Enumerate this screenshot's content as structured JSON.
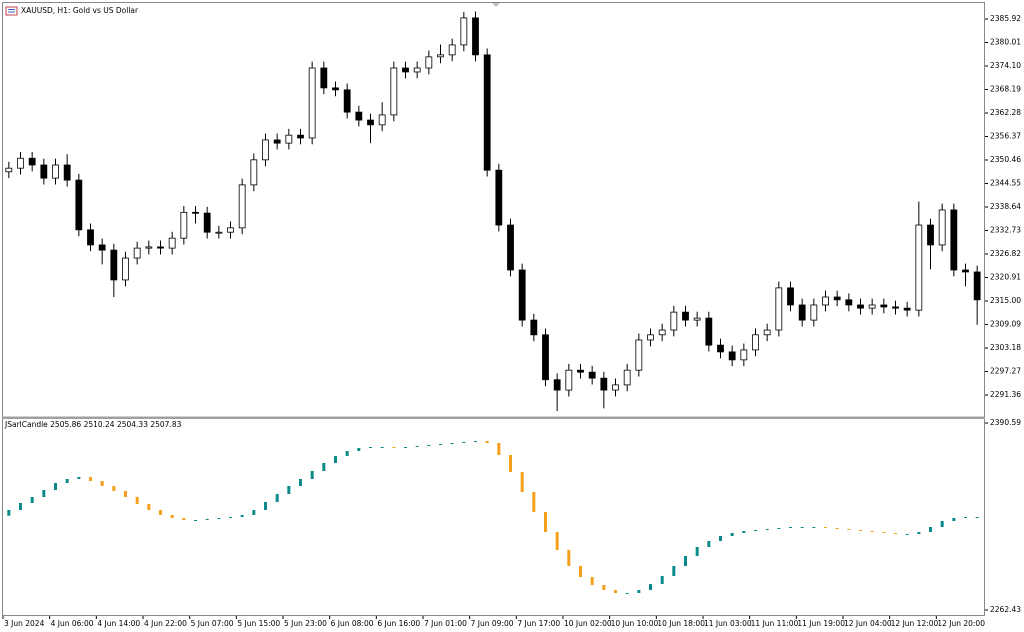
{
  "chart_data": [
    {
      "type": "candlestick",
      "title": "XAUUSD, H1: Gold vs US Dollar",
      "categories": [
        "3 Jun 2024",
        null,
        null,
        null,
        "4 Jun 06:00",
        null,
        null,
        null,
        "4 Jun 14:00",
        null,
        null,
        null,
        "4 Jun 22:00",
        null,
        null,
        null,
        "5 Jun 07:00",
        null,
        null,
        null,
        "5 Jun 15:00",
        null,
        null,
        null,
        "5 Jun 23:00",
        null,
        null,
        null,
        "6 Jun 08:00",
        null,
        null,
        null,
        "6 Jun 16:00",
        null,
        null,
        null,
        "7 Jun 01:00",
        null,
        null,
        null,
        "7 Jun 09:00",
        null,
        null,
        null,
        "7 Jun 17:00",
        null,
        null,
        null,
        "10 Jun 02:00",
        null,
        null,
        null,
        "10 Jun 10:00",
        null,
        null,
        null,
        "10 Jun 18:00",
        null,
        null,
        null,
        "11 Jun 03:00",
        null,
        null,
        null,
        "11 Jun 11:00",
        null,
        null,
        null,
        "11 Jun 19:00",
        null,
        null,
        null,
        "12 Jun 04:00",
        null,
        null,
        null,
        "12 Jun 12:00",
        null,
        null,
        null,
        "12 Jun 20:00",
        null,
        null,
        null
      ],
      "open": [
        2347.5,
        2348.4,
        2350.9,
        2349.2,
        2345.9,
        2349.2,
        2345.4,
        2332.9,
        2329.1,
        2327.8,
        2320.3,
        2325.8,
        2328.3,
        2328.6,
        2328.3,
        2330.8,
        2337.3,
        2337.1,
        2332.3,
        2332.3,
        2333.4,
        2344.2,
        2350.5,
        2355.5,
        2354.7,
        2356.7,
        2356.0,
        2373.6,
        2368.6,
        2368.1,
        2362.5,
        2360.5,
        2359.3,
        2361.8,
        2373.6,
        2372.6,
        2373.6,
        2376.4,
        2376.9,
        2379.4,
        2386.2,
        2376.9,
        2347.9,
        2334.1,
        2322.8,
        2310.2,
        2306.5,
        2295.2,
        2292.6,
        2297.6,
        2297.1,
        2295.6,
        2292.6,
        2293.9,
        2297.6,
        2305.2,
        2306.5,
        2307.7,
        2312.2,
        2310.2,
        2310.7,
        2303.9,
        2302.2,
        2300.2,
        2302.7,
        2306.5,
        2307.7,
        2318.3,
        2314.0,
        2310.2,
        2314.0,
        2316.0,
        2315.3,
        2314.0,
        2313.2,
        2314.0,
        2313.5,
        2313.2,
        2312.7,
        2334.1,
        2329.1,
        2337.9,
        2322.8,
        2322.3
      ],
      "high": [
        2350.0,
        2352.5,
        2352.5,
        2350.8,
        2350.8,
        2351.9,
        2347.0,
        2334.5,
        2330.7,
        2329.4,
        2327.4,
        2329.9,
        2330.2,
        2330.2,
        2332.4,
        2338.9,
        2338.9,
        2338.7,
        2333.9,
        2335.0,
        2345.8,
        2352.1,
        2357.1,
        2357.1,
        2358.3,
        2358.3,
        2375.2,
        2375.2,
        2370.2,
        2369.7,
        2364.1,
        2362.1,
        2365.0,
        2375.2,
        2375.2,
        2375.2,
        2378.0,
        2379.5,
        2381.0,
        2387.7,
        2387.8,
        2378.5,
        2349.5,
        2335.7,
        2324.4,
        2311.8,
        2308.1,
        2296.8,
        2299.2,
        2299.2,
        2298.7,
        2297.2,
        2295.5,
        2299.2,
        2306.8,
        2308.1,
        2309.3,
        2313.8,
        2313.8,
        2312.3,
        2312.3,
        2305.5,
        2303.8,
        2304.3,
        2308.1,
        2309.3,
        2319.9,
        2319.9,
        2315.6,
        2315.6,
        2317.6,
        2317.6,
        2316.9,
        2315.6,
        2315.6,
        2315.6,
        2315.1,
        2314.8,
        2340.0,
        2335.7,
        2339.5,
        2339.5,
        2324.4,
        2323.9
      ],
      "low": [
        2345.9,
        2346.8,
        2347.6,
        2344.3,
        2344.3,
        2343.8,
        2331.3,
        2327.5,
        2324.2,
        2316.0,
        2318.7,
        2324.2,
        2326.7,
        2326.7,
        2326.7,
        2329.2,
        2334.5,
        2330.7,
        2330.7,
        2330.7,
        2331.8,
        2342.6,
        2348.9,
        2353.1,
        2353.1,
        2354.4,
        2354.4,
        2367.0,
        2366.5,
        2360.9,
        2358.9,
        2354.7,
        2357.7,
        2360.2,
        2371.0,
        2371.0,
        2372.0,
        2374.8,
        2375.3,
        2377.8,
        2375.3,
        2346.3,
        2332.5,
        2321.2,
        2308.6,
        2304.9,
        2293.6,
        2287.3,
        2291.0,
        2295.5,
        2294.0,
        2288.0,
        2291.0,
        2292.3,
        2296.0,
        2303.6,
        2304.9,
        2306.1,
        2308.6,
        2308.6,
        2302.3,
        2300.6,
        2298.6,
        2298.6,
        2301.1,
        2304.9,
        2306.1,
        2312.4,
        2308.6,
        2308.6,
        2312.4,
        2313.7,
        2312.4,
        2311.6,
        2311.6,
        2311.9,
        2311.6,
        2311.1,
        2311.1,
        2323.0,
        2327.5,
        2321.2,
        2318.7,
        2309.0
      ],
      "close": [
        2348.4,
        2350.9,
        2349.2,
        2345.9,
        2349.2,
        2345.4,
        2332.9,
        2329.1,
        2327.8,
        2320.3,
        2325.8,
        2328.3,
        2328.6,
        2328.3,
        2330.8,
        2337.3,
        2337.1,
        2332.3,
        2332.3,
        2333.4,
        2344.2,
        2350.5,
        2355.5,
        2354.7,
        2356.7,
        2356.0,
        2373.6,
        2368.6,
        2368.1,
        2362.5,
        2360.5,
        2359.3,
        2361.8,
        2373.6,
        2372.6,
        2373.6,
        2376.4,
        2376.9,
        2379.4,
        2386.2,
        2376.9,
        2347.9,
        2334.1,
        2322.8,
        2310.2,
        2306.5,
        2295.2,
        2292.6,
        2297.6,
        2297.1,
        2295.6,
        2292.6,
        2293.9,
        2297.6,
        2305.2,
        2306.5,
        2307.7,
        2312.2,
        2310.2,
        2310.7,
        2303.9,
        2302.2,
        2300.2,
        2302.7,
        2306.5,
        2307.7,
        2318.3,
        2314.0,
        2310.2,
        2314.0,
        2316.0,
        2315.3,
        2314.0,
        2313.2,
        2314.0,
        2313.5,
        2313.2,
        2312.7,
        2334.1,
        2329.1,
        2337.9,
        2322.8,
        2322.3,
        2315.3
      ],
      "up_color": "#ffffff",
      "down_color": "#000000",
      "edge_color": "#000000",
      "ylim": [
        2286.08,
        2389.69
      ],
      "yticks": [
        2385.92,
        2380.01,
        {
          "value": 2374.1,
          "label": "2374.10"
        },
        2368.19,
        2362.28,
        2356.37,
        2350.46,
        2344.55,
        2338.64,
        2332.73,
        2326.82,
        2320.91,
        {
          "value": 2315,
          "label": "2315.00"
        },
        2309.09,
        2303.18,
        2297.27,
        2291.36
      ],
      "grid": false
    },
    {
      "type": "candlestick",
      "title": "JSarlCandle 2505.86 2510.24 2504.33 2507.83",
      "open": [
        2327.0,
        2330.97,
        2335.77,
        2339.88,
        2344.67,
        2349.47,
        2352.21,
        2353.58,
        2350.84,
        2347.42,
        2343.99,
        2339.88,
        2335.08,
        2330.97,
        2327.54,
        2325.49,
        2324.12,
        2324.12,
        2324.8,
        2325.49,
        2326.17,
        2327.54,
        2330.97,
        2336.45,
        2341.93,
        2347.42,
        2352.21,
        2357.7,
        2363.18,
        2367.98,
        2371.4,
        2373.46,
        2374.14,
        2374.14,
        2373.46,
        2374.14,
        2374.83,
        2375.51,
        2376.2,
        2376.88,
        2377.57,
        2378.25,
        2376.88,
        2368.66,
        2357.01,
        2343.3,
        2329.6,
        2315.89,
        2303.56,
        2292.59,
        2285.05,
        2279.57,
        2276.14,
        2274.09,
        2274.09,
        2276.14,
        2280.26,
        2285.74,
        2292.59,
        2299.45,
        2305.61,
        2309.72,
        2313.15,
        2315.21,
        2316.58,
        2317.26,
        2317.95,
        2318.63,
        2319.32,
        2319.32,
        2319.32,
        2318.63,
        2317.95,
        2317.26,
        2316.58,
        2315.89,
        2315.21,
        2314.52,
        2314.52,
        2315.89,
        2319.32,
        2323.43,
        2325.49,
        2326.17
      ],
      "close": [
        2330.97,
        2335.77,
        2339.88,
        2344.67,
        2349.47,
        2352.21,
        2353.58,
        2350.84,
        2347.42,
        2343.99,
        2339.88,
        2335.08,
        2330.97,
        2327.54,
        2325.49,
        2324.12,
        2324.12,
        2324.8,
        2325.49,
        2326.17,
        2327.54,
        2330.97,
        2336.45,
        2341.93,
        2347.42,
        2352.21,
        2357.7,
        2363.18,
        2367.98,
        2371.4,
        2373.46,
        2374.14,
        2374.14,
        2373.46,
        2374.14,
        2374.83,
        2375.51,
        2376.2,
        2376.88,
        2377.57,
        2378.25,
        2376.88,
        2368.66,
        2357.01,
        2343.3,
        2329.6,
        2315.89,
        2303.56,
        2292.59,
        2285.05,
        2279.57,
        2276.14,
        2274.09,
        2274.09,
        2276.14,
        2280.26,
        2285.74,
        2292.59,
        2299.45,
        2305.61,
        2309.72,
        2313.15,
        2315.21,
        2316.58,
        2317.26,
        2317.95,
        2318.63,
        2319.32,
        2319.32,
        2319.32,
        2318.63,
        2317.95,
        2317.26,
        2316.58,
        2315.89,
        2315.21,
        2314.52,
        2314.52,
        2315.89,
        2319.32,
        2323.43,
        2325.49,
        2326.17,
        2326.17
      ],
      "up_color": "#0a8a8a",
      "down_color": "#f5a01a",
      "edge_color": null,
      "ylim": [
        2258.32,
        2393.33
      ],
      "yticks": [
        2390.59,
        2262.43
      ],
      "grid": false
    }
  ]
}
